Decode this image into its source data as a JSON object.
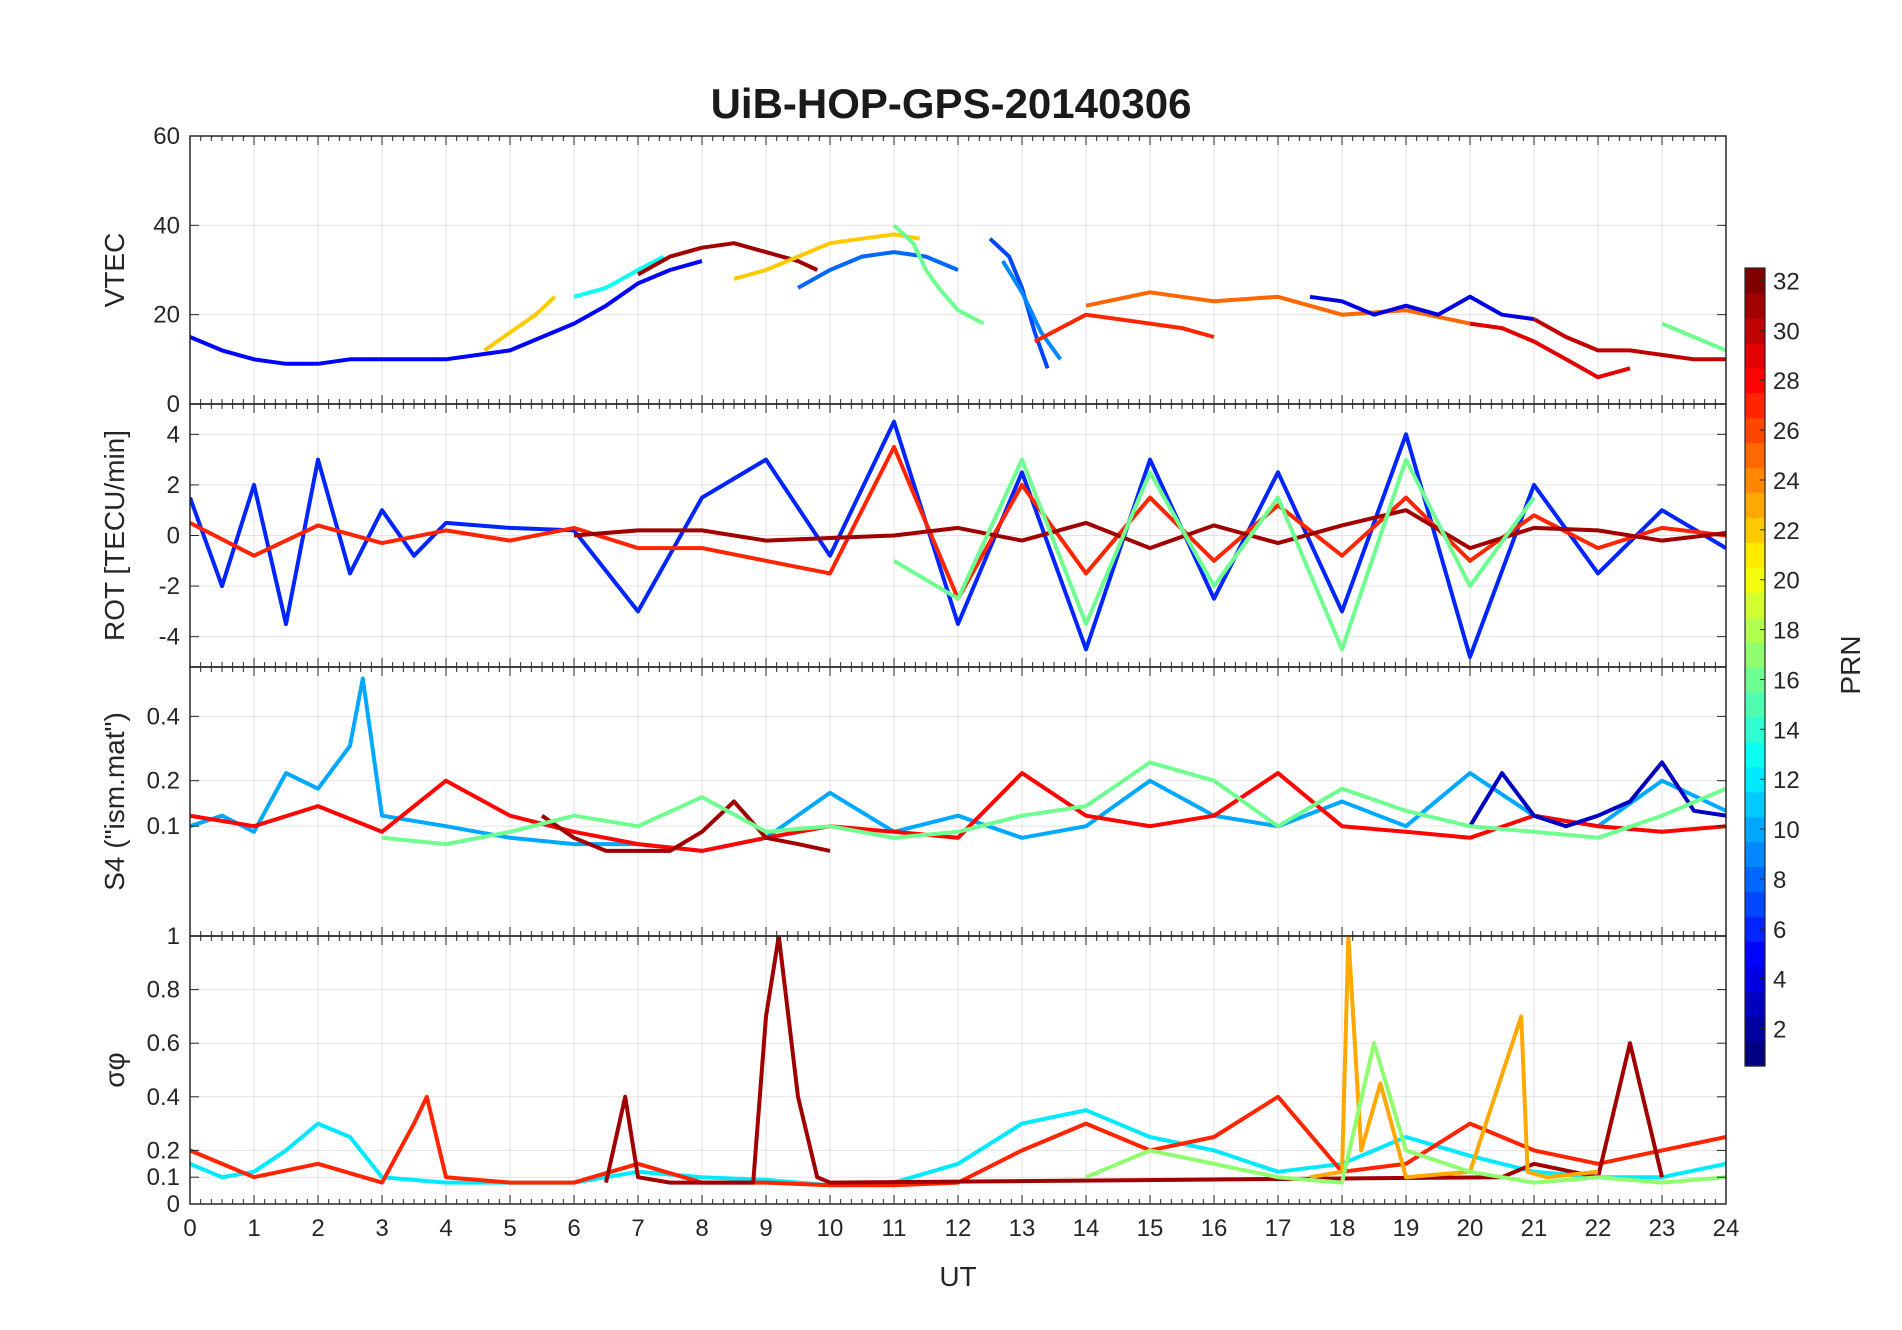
{
  "chart_data": {
    "type": "line",
    "title": "UiB-HOP-GPS-20140306",
    "xlabel": "UT",
    "xlim": [
      0,
      24
    ],
    "x_ticks": [
      "0",
      "1",
      "2",
      "3",
      "4",
      "5",
      "6",
      "7",
      "8",
      "9",
      "10",
      "11",
      "12",
      "13",
      "14",
      "15",
      "16",
      "17",
      "18",
      "19",
      "20",
      "21",
      "22",
      "23",
      "24"
    ],
    "grid": true,
    "panels": [
      {
        "ylabel": "VTEC",
        "ylim": [
          0,
          60
        ],
        "y_ticks": [
          {
            "v": 0,
            "t": "0"
          },
          {
            "v": 20,
            "t": "20"
          },
          {
            "v": 40,
            "t": "40"
          },
          {
            "v": 60,
            "t": "60"
          }
        ],
        "series": [
          {
            "prn": 5,
            "x": [
              0,
              0.5,
              1,
              1.5,
              2,
              2.5,
              3,
              3.5,
              4,
              4.5,
              5,
              5.5,
              6,
              6.5,
              7,
              7.5,
              8
            ],
            "y": [
              15,
              12,
              10,
              9,
              9,
              10,
              10,
              10,
              10,
              11,
              12,
              15,
              18,
              22,
              27,
              30,
              32
            ]
          },
          {
            "prn": 22,
            "x": [
              4.6,
              5,
              5.4,
              5.7
            ],
            "y": [
              12,
              16,
              20,
              24
            ]
          },
          {
            "prn": 13,
            "x": [
              6,
              6.5,
              7,
              7.4
            ],
            "y": [
              24,
              26,
              30,
              33
            ]
          },
          {
            "prn": 31,
            "x": [
              7,
              7.5,
              8,
              8.5,
              9,
              9.5,
              9.8
            ],
            "y": [
              29,
              33,
              35,
              36,
              34,
              32,
              30
            ]
          },
          {
            "prn": 22,
            "x": [
              8.5,
              9,
              9.5,
              10,
              10.5,
              11,
              11.4
            ],
            "y": [
              28,
              30,
              33,
              36,
              37,
              38,
              37
            ]
          },
          {
            "prn": 8,
            "x": [
              9.5,
              10,
              10.5,
              11,
              11.5,
              12
            ],
            "y": [
              26,
              30,
              33,
              34,
              33,
              30
            ]
          },
          {
            "prn": 16,
            "x": [
              11,
              11.3,
              11.5,
              11.7,
              12,
              12.4
            ],
            "y": [
              40,
              36,
              30,
              26,
              21,
              18
            ]
          },
          {
            "prn": 7,
            "x": [
              12.5,
              12.8,
              13,
              13.2,
              13.4
            ],
            "y": [
              37,
              33,
              26,
              16,
              8
            ]
          },
          {
            "prn": 9,
            "x": [
              12.7,
              13,
              13.3,
              13.6
            ],
            "y": [
              32,
              25,
              16,
              10
            ]
          },
          {
            "prn": 27,
            "x": [
              13.2,
              13.6,
              14,
              14.5,
              15,
              15.5,
              16
            ],
            "y": [
              14,
              17,
              20,
              19,
              18,
              17,
              15
            ]
          },
          {
            "prn": 25,
            "x": [
              14,
              15,
              16,
              17,
              18,
              19,
              20
            ],
            "y": [
              22,
              25,
              23,
              24,
              20,
              21,
              18
            ]
          },
          {
            "prn": 4,
            "x": [
              17.5,
              18,
              18.5,
              19,
              19.5,
              20,
              20.5,
              21
            ],
            "y": [
              24,
              23,
              20,
              22,
              20,
              24,
              20,
              19
            ]
          },
          {
            "prn": 29,
            "x": [
              20,
              20.5,
              21,
              21.5,
              22,
              22.5
            ],
            "y": [
              18,
              17,
              14,
              10,
              6,
              8
            ]
          },
          {
            "prn": 30,
            "x": [
              21,
              21.5,
              22,
              22.5,
              23,
              23.5,
              24
            ],
            "y": [
              19,
              15,
              12,
              12,
              11,
              10,
              10
            ]
          },
          {
            "prn": 16,
            "x": [
              23,
              23.5,
              24
            ],
            "y": [
              18,
              15,
              12
            ]
          }
        ]
      },
      {
        "ylabel": "ROT [TECU/min]",
        "ylim": [
          -5.2,
          5.2
        ],
        "y_ticks": [
          {
            "v": -4,
            "t": "-4"
          },
          {
            "v": -2,
            "t": "-2"
          },
          {
            "v": 0,
            "t": "0"
          },
          {
            "v": 2,
            "t": "2"
          },
          {
            "v": 4,
            "t": "4"
          }
        ],
        "series": [
          {
            "prn": 6,
            "x": [
              0,
              0.5,
              1,
              1.5,
              2,
              2.5,
              3,
              3.5,
              4,
              5,
              6,
              7,
              8,
              9,
              10,
              11,
              12,
              13,
              14,
              15,
              16,
              17,
              18,
              19,
              20,
              21,
              22,
              23,
              24
            ],
            "y": [
              1.5,
              -2,
              2,
              -3.5,
              3,
              -1.5,
              1,
              -0.8,
              0.5,
              0.3,
              0.2,
              -3,
              1.5,
              3,
              -0.8,
              4.5,
              -3.5,
              2.5,
              -4.5,
              3,
              -2.5,
              2.5,
              -3,
              4,
              -4.8,
              2,
              -1.5,
              1,
              -0.5
            ]
          },
          {
            "prn": 27,
            "x": [
              0,
              1,
              2,
              3,
              4,
              5,
              6,
              7,
              8,
              9,
              10,
              11,
              12,
              13,
              14,
              15,
              16,
              17,
              18,
              19,
              20,
              21,
              22,
              23,
              24
            ],
            "y": [
              0.5,
              -0.8,
              0.4,
              -0.3,
              0.2,
              -0.2,
              0.3,
              -0.5,
              -0.5,
              -1,
              -1.5,
              3.5,
              -2.5,
              2,
              -1.5,
              1.5,
              -1,
              1.2,
              -0.8,
              1.5,
              -1,
              0.8,
              -0.5,
              0.3,
              0
            ]
          },
          {
            "prn": 31,
            "x": [
              6,
              7,
              8,
              9,
              10,
              11,
              12,
              13,
              14,
              15,
              16,
              17,
              18,
              19,
              20,
              21,
              22,
              23,
              24
            ],
            "y": [
              0,
              0.2,
              0.2,
              -0.2,
              -0.1,
              0,
              0.3,
              -0.2,
              0.5,
              -0.5,
              0.4,
              -0.3,
              0.4,
              1,
              -0.5,
              0.3,
              0.2,
              -0.2,
              0.1
            ]
          },
          {
            "prn": 16,
            "x": [
              11,
              12,
              13,
              14,
              15,
              16,
              17,
              18,
              19,
              20,
              21
            ],
            "y": [
              -1,
              -2.5,
              3,
              -3.5,
              2.5,
              -2,
              1.5,
              -4.5,
              3,
              -2,
              1.5
            ]
          }
        ]
      },
      {
        "ylabel": "S4 (\"ism.mat\")",
        "ylim": [
          0,
          0.6
        ],
        "y_ticks": [
          {
            "v": 0.1,
            "t": "0.1"
          },
          {
            "v": 0.2,
            "t": "0.2"
          },
          {
            "v": 0.4,
            "t": "0.4"
          }
        ],
        "y_map": "sqrt",
        "series": [
          {
            "prn": 10,
            "x": [
              0,
              0.5,
              1,
              1.5,
              2,
              2.5,
              2.7,
              3,
              4,
              5,
              6,
              7,
              8,
              9,
              10,
              11,
              12,
              13,
              14,
              15,
              16,
              17,
              18,
              19,
              20,
              21,
              22,
              23,
              24
            ],
            "y": [
              0.1,
              0.12,
              0.09,
              0.22,
              0.18,
              0.3,
              0.55,
              0.12,
              0.1,
              0.08,
              0.07,
              0.07,
              0.06,
              0.08,
              0.17,
              0.09,
              0.12,
              0.08,
              0.1,
              0.2,
              0.12,
              0.1,
              0.15,
              0.1,
              0.22,
              0.12,
              0.1,
              0.2,
              0.13
            ]
          },
          {
            "prn": 28,
            "x": [
              0,
              1,
              2,
              3,
              4,
              5,
              6,
              7,
              8,
              9,
              10,
              11,
              12,
              13,
              14,
              15,
              16,
              17,
              18,
              19,
              20,
              21,
              22,
              23,
              24
            ],
            "y": [
              0.12,
              0.1,
              0.14,
              0.09,
              0.2,
              0.12,
              0.09,
              0.07,
              0.06,
              0.08,
              0.1,
              0.09,
              0.08,
              0.22,
              0.12,
              0.1,
              0.12,
              0.22,
              0.1,
              0.09,
              0.08,
              0.12,
              0.1,
              0.09,
              0.1
            ]
          },
          {
            "prn": 31,
            "x": [
              5.5,
              6,
              6.5,
              7,
              7.5,
              8,
              8.5,
              9,
              9.5,
              10
            ],
            "y": [
              0.12,
              0.08,
              0.06,
              0.06,
              0.06,
              0.09,
              0.15,
              0.08,
              0.07,
              0.06
            ]
          },
          {
            "prn": 3,
            "x": [
              20,
              20.5,
              21,
              21.5,
              22,
              22.5,
              23,
              23.5,
              24
            ],
            "y": [
              0.1,
              0.22,
              0.12,
              0.1,
              0.12,
              0.15,
              0.25,
              0.13,
              0.12
            ]
          },
          {
            "prn": 16,
            "x": [
              3,
              4,
              5,
              6,
              7,
              8,
              9,
              10,
              11,
              12,
              13,
              14,
              15,
              16,
              17,
              18,
              19,
              20,
              21,
              22,
              23,
              24
            ],
            "y": [
              0.08,
              0.07,
              0.09,
              0.12,
              0.1,
              0.16,
              0.09,
              0.1,
              0.08,
              0.09,
              0.12,
              0.14,
              0.25,
              0.2,
              0.1,
              0.18,
              0.13,
              0.1,
              0.09,
              0.08,
              0.12,
              0.18
            ]
          }
        ]
      },
      {
        "ylabel": "σφ",
        "ylim": [
          0,
          1
        ],
        "y_ticks": [
          {
            "v": 0,
            "t": "0"
          },
          {
            "v": 0.1,
            "t": "0.1"
          },
          {
            "v": 0.2,
            "t": "0.2"
          },
          {
            "v": 0.4,
            "t": "0.4"
          },
          {
            "v": 0.6,
            "t": "0.6"
          },
          {
            "v": 0.8,
            "t": "0.8"
          },
          {
            "v": 1,
            "t": "1"
          }
        ],
        "series": [
          {
            "prn": 12,
            "x": [
              0,
              0.5,
              1,
              1.5,
              2,
              2.5,
              3,
              4,
              5,
              6,
              7,
              8,
              9,
              10,
              11,
              12,
              13,
              14,
              15,
              16,
              17,
              18,
              19,
              20,
              21,
              22,
              23,
              24
            ],
            "y": [
              0.15,
              0.1,
              0.12,
              0.2,
              0.3,
              0.25,
              0.1,
              0.08,
              0.08,
              0.08,
              0.12,
              0.1,
              0.09,
              0.07,
              0.08,
              0.15,
              0.3,
              0.35,
              0.25,
              0.2,
              0.12,
              0.15,
              0.25,
              0.18,
              0.12,
              0.1,
              0.1,
              0.15
            ]
          },
          {
            "prn": 27,
            "x": [
              0,
              1,
              2,
              3,
              3.5,
              3.7,
              4,
              5,
              6,
              7,
              8,
              9,
              10,
              11,
              12,
              13,
              14,
              15,
              16,
              17,
              18,
              19,
              20,
              21,
              22,
              23,
              24
            ],
            "y": [
              0.2,
              0.1,
              0.15,
              0.08,
              0.3,
              0.4,
              0.1,
              0.08,
              0.08,
              0.15,
              0.08,
              0.08,
              0.07,
              0.07,
              0.08,
              0.2,
              0.3,
              0.2,
              0.25,
              0.4,
              0.12,
              0.15,
              0.3,
              0.2,
              0.15,
              0.2,
              0.25
            ]
          },
          {
            "prn": 31,
            "x": [
              6.5,
              6.8,
              7,
              7.5,
              8,
              8.8,
              9,
              9.2,
              9.3,
              9.5,
              9.8,
              10,
              20.5,
              21,
              22,
              22.5,
              23
            ],
            "y": [
              0.08,
              0.4,
              0.1,
              0.08,
              0.08,
              0.08,
              0.7,
              1,
              0.8,
              0.4,
              0.1,
              0.08,
              0.1,
              0.15,
              0.1,
              0.6,
              0.1
            ]
          },
          {
            "prn": 23,
            "x": [
              17.5,
              18,
              18.1,
              18.3,
              18.6,
              19,
              20,
              20.8,
              20.9,
              21.2,
              22
            ],
            "y": [
              0.1,
              0.12,
              1,
              0.2,
              0.45,
              0.1,
              0.12,
              0.7,
              0.12,
              0.1,
              0.12
            ]
          },
          {
            "prn": 17,
            "x": [
              14,
              15,
              16,
              17,
              18,
              18.5,
              19,
              20,
              21,
              22,
              23,
              24
            ],
            "y": [
              0.1,
              0.2,
              0.15,
              0.1,
              0.08,
              0.6,
              0.2,
              0.12,
              0.08,
              0.1,
              0.08,
              0.1
            ]
          }
        ]
      }
    ],
    "colorbar": {
      "label": "PRN",
      "range": [
        1,
        32
      ],
      "ticks": [
        "2",
        "4",
        "6",
        "8",
        "10",
        "12",
        "14",
        "16",
        "18",
        "20",
        "22",
        "24",
        "26",
        "28",
        "30",
        "32"
      ]
    }
  }
}
